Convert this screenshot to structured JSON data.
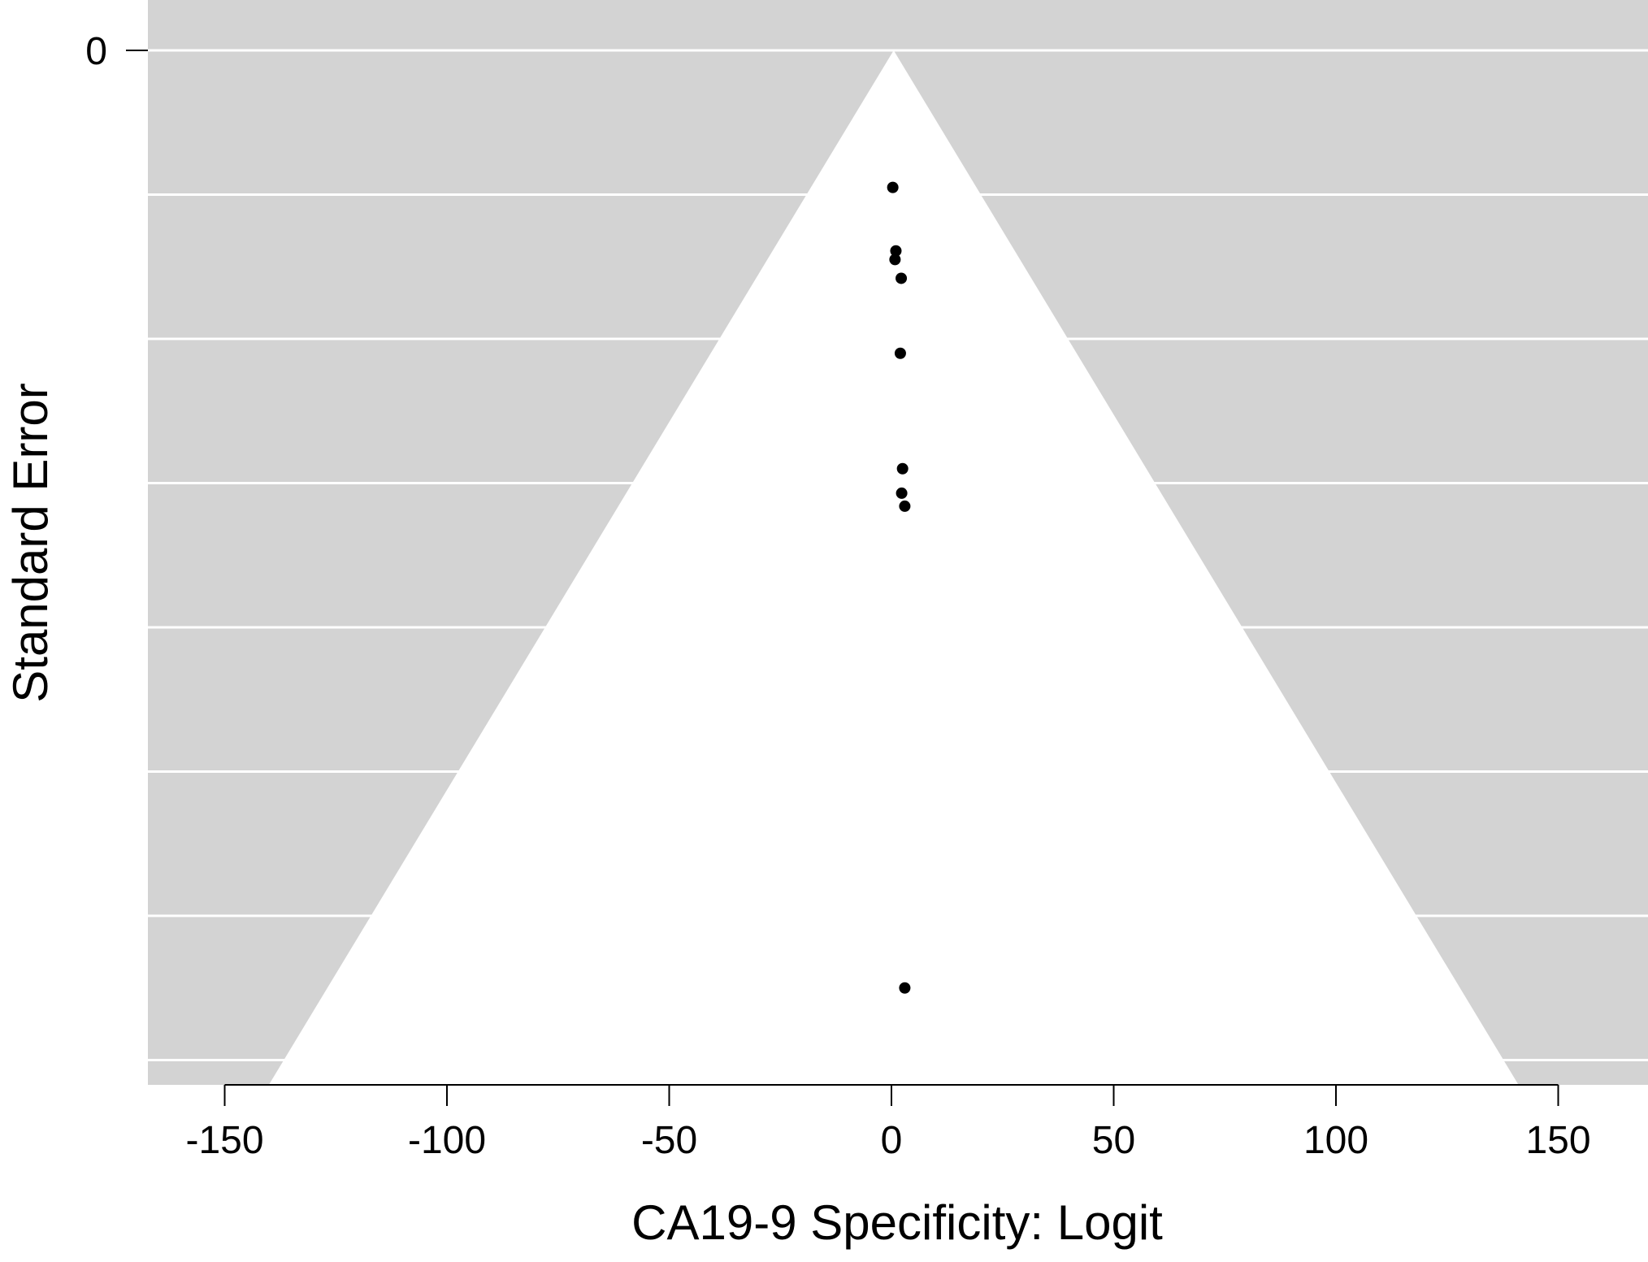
{
  "chart_data": {
    "type": "scatter",
    "title": "",
    "xlabel": "CA19-9 Specificity: Logit",
    "ylabel": "Standard Error",
    "xlim": [
      -168,
      168
    ],
    "ylim": [
      0,
      72
    ],
    "y_reversed": true,
    "x_ticks": [
      -150,
      -100,
      -50,
      0,
      50,
      100,
      150
    ],
    "x_tick_labels": [
      "-150",
      "-100",
      "-50",
      "0",
      "50",
      "100",
      "150"
    ],
    "y_ticks": [
      0
    ],
    "y_tick_labels": [
      "0"
    ],
    "y_gridlines": [
      0,
      10,
      20,
      30,
      40,
      50,
      60,
      70
    ],
    "grid": true,
    "background_color": "#d3d3d3",
    "funnel_color": "#ffffff",
    "point_color": "#000000",
    "funnel": {
      "center": 0.5,
      "apex_se": 0,
      "half_width_per_se": 1.96
    },
    "points": [
      {
        "x": 0.3,
        "y": 9.5
      },
      {
        "x": 1.0,
        "y": 13.9
      },
      {
        "x": 0.8,
        "y": 14.5
      },
      {
        "x": 2.2,
        "y": 15.8
      },
      {
        "x": 2.0,
        "y": 21.0
      },
      {
        "x": 2.5,
        "y": 29.0
      },
      {
        "x": 2.3,
        "y": 30.7
      },
      {
        "x": 3.0,
        "y": 31.6
      },
      {
        "x": 3.0,
        "y": 65.0
      }
    ]
  }
}
